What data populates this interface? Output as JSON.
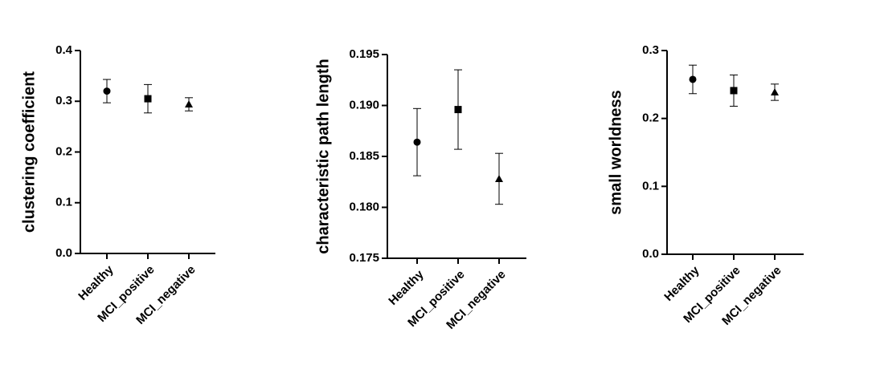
{
  "chart_data": [
    {
      "type": "errorbar",
      "y_label": "clustering coefficient",
      "categories": [
        "Healthy",
        "MCI_positive",
        "MCI_negative"
      ],
      "values": [
        0.32,
        0.305,
        0.294
      ],
      "errors": [
        0.023,
        0.028,
        0.013
      ],
      "markers": [
        "circle",
        "square",
        "triangle"
      ],
      "color": "#000000",
      "ylim": [
        0,
        0.4
      ],
      "yticks": [
        {
          "value": 0,
          "label": "0.0"
        },
        0.1,
        0.2,
        0.3,
        0.4
      ]
    },
    {
      "type": "errorbar",
      "y_label": "characteristic path length",
      "categories": [
        "Healthy",
        "MCI_positive",
        "MCI_negative"
      ],
      "values": [
        0.1864,
        0.1896,
        0.1828
      ],
      "errors": [
        0.0033,
        0.0039,
        0.0025
      ],
      "markers": [
        "circle",
        "square",
        "triangle"
      ],
      "color": "#000000",
      "ylim": [
        0.175,
        0.195
      ],
      "yticks": [
        0.175,
        {
          "value": 0.18,
          "label": "0.180"
        },
        0.185,
        {
          "value": 0.19,
          "label": "0.190"
        },
        0.195
      ]
    },
    {
      "type": "errorbar",
      "y_label": "small worldness",
      "categories": [
        "Healthy",
        "MCI_positive",
        "MCI_negative"
      ],
      "values": [
        0.2575,
        0.241,
        0.2386
      ],
      "errors": [
        0.021,
        0.023,
        0.012
      ],
      "markers": [
        "circle",
        "square",
        "triangle"
      ],
      "color": "#000000",
      "ylim": [
        0,
        0.3
      ],
      "yticks": [
        {
          "value": 0,
          "label": "0.0"
        },
        0.1,
        0.2,
        0.3
      ]
    }
  ]
}
